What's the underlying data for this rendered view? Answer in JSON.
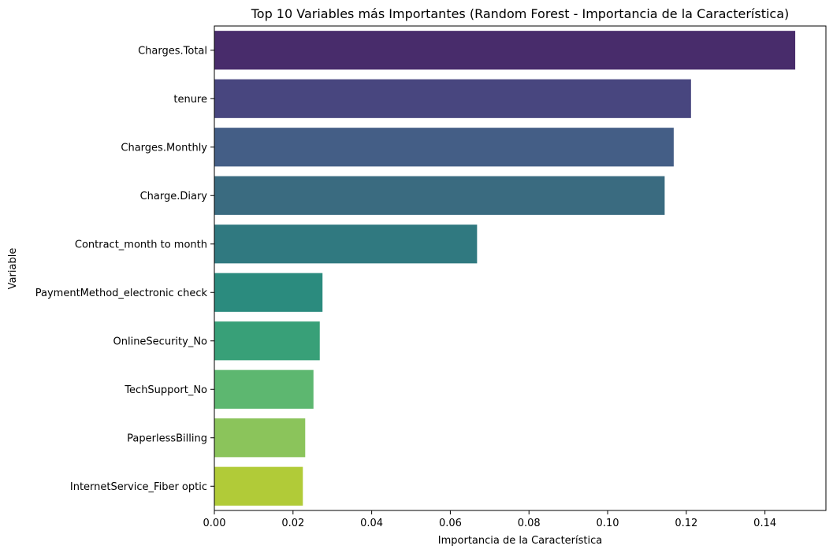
{
  "chart_data": {
    "type": "bar",
    "orientation": "horizontal",
    "title": "Top 10 Variables más Importantes (Random Forest - Importancia de la Característica)",
    "xlabel": "Importancia de la Característica",
    "ylabel": "Variable",
    "xlim": [
      0,
      0.1555
    ],
    "xticks": [
      "0.00",
      "0.02",
      "0.04",
      "0.06",
      "0.08",
      "0.10",
      "0.12",
      "0.14"
    ],
    "xtick_values": [
      0,
      0.02,
      0.04,
      0.06,
      0.08,
      0.1,
      0.12,
      0.14
    ],
    "grid": false,
    "categories": [
      "Charges.Total",
      "tenure",
      "Charges.Monthly",
      "Charge.Diary",
      "Contract_month to month",
      "PaymentMethod_electronic check",
      "OnlineSecurity_No",
      "TechSupport_No",
      "PaperlessBilling",
      "InternetService_Fiber optic"
    ],
    "values": [
      0.1477,
      0.1212,
      0.1168,
      0.1145,
      0.0668,
      0.0275,
      0.0268,
      0.0252,
      0.0231,
      0.0225
    ],
    "colors": [
      "#482c6b",
      "#48467f",
      "#445e86",
      "#3a6b80",
      "#307980",
      "#2b8b7e",
      "#38a078",
      "#5db770",
      "#8bc45b",
      "#b1cb38"
    ]
  }
}
